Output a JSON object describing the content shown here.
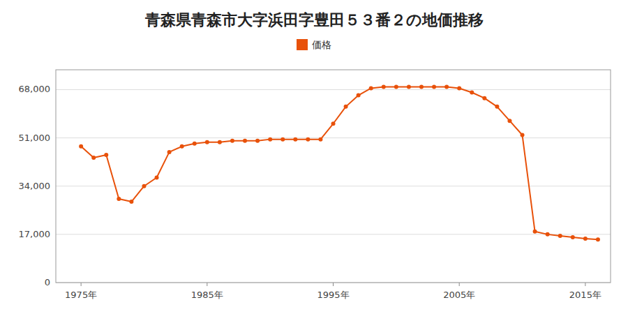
{
  "chart_data": {
    "type": "line",
    "title": "青森県青森市大字浜田字豊田５３番２の地価推移",
    "x": [
      1975,
      1976,
      1977,
      1978,
      1979,
      1980,
      1981,
      1982,
      1983,
      1984,
      1985,
      1986,
      1987,
      1988,
      1989,
      1990,
      1991,
      1992,
      1993,
      1994,
      1995,
      1996,
      1997,
      1998,
      1999,
      2000,
      2001,
      2002,
      2003,
      2004,
      2005,
      2006,
      2007,
      2008,
      2009,
      2010,
      2011,
      2012,
      2013,
      2014,
      2015,
      2016
    ],
    "series": [
      {
        "name": "価格",
        "color": "#E8510A",
        "marker": "circle",
        "values": [
          48000,
          44000,
          45000,
          29500,
          28500,
          34000,
          37000,
          46000,
          48000,
          49000,
          49500,
          49500,
          50000,
          50000,
          50000,
          50500,
          50500,
          50500,
          50500,
          50500,
          56000,
          62000,
          66000,
          68500,
          69000,
          69000,
          69000,
          69000,
          69000,
          69000,
          68500,
          67000,
          65000,
          62000,
          57000,
          52000,
          18000,
          17000,
          16500,
          16000,
          15500,
          15200
        ]
      }
    ],
    "xlim": [
      1973,
      2017
    ],
    "xticks": [
      {
        "value": 1975,
        "label": "1975年"
      },
      {
        "value": 1985,
        "label": "1985年"
      },
      {
        "value": 1995,
        "label": "1995年"
      },
      {
        "value": 2005,
        "label": "2005年"
      },
      {
        "value": 2015,
        "label": "2015年"
      }
    ],
    "ylim": [
      0,
      75000
    ],
    "yticks": [
      0,
      {
        "value": 17000,
        "label": "17,000"
      },
      {
        "value": 34000,
        "label": "34,000"
      },
      {
        "value": 51000,
        "label": "51,000"
      },
      {
        "value": 68000,
        "label": "68,000"
      }
    ],
    "grid": true,
    "legend": "top"
  }
}
